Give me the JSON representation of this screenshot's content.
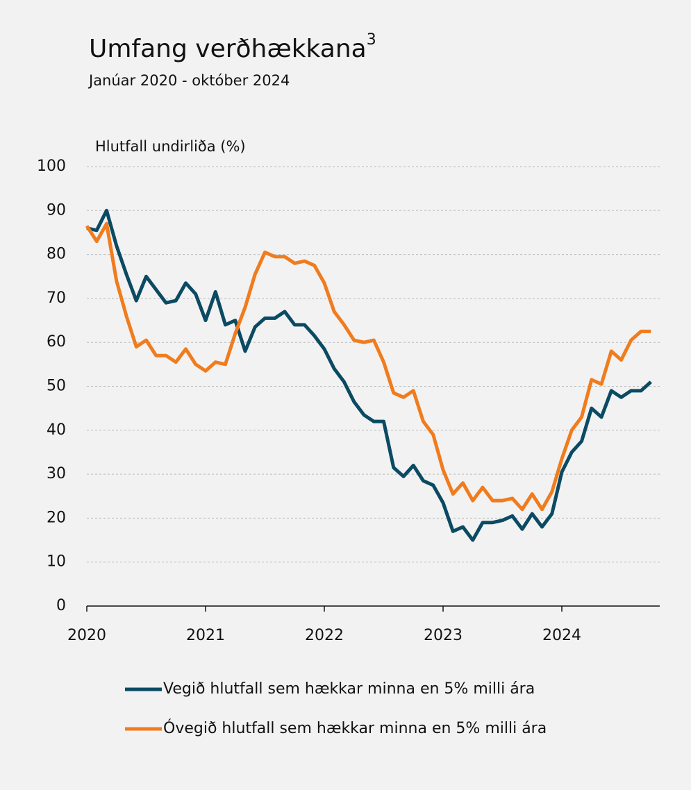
{
  "chart_data": {
    "type": "line",
    "title": "Umfang verðhækkana",
    "title_superscript": "3",
    "subtitle": "Janúar 2020 - október 2024",
    "y_label": "Hlutfall undirliða (%)",
    "categories": [
      "2020",
      null,
      null,
      null,
      null,
      null,
      null,
      null,
      null,
      null,
      null,
      null,
      "2021",
      null,
      null,
      null,
      null,
      null,
      null,
      null,
      null,
      null,
      null,
      null,
      "2022",
      null,
      null,
      null,
      null,
      null,
      null,
      null,
      null,
      null,
      null,
      null,
      "2023",
      null,
      null,
      null,
      null,
      null,
      null,
      null,
      null,
      null,
      null,
      null,
      "2024",
      null,
      null,
      null,
      null,
      null,
      null,
      null,
      null,
      null
    ],
    "series": [
      {
        "name": "Vegið hlutfall sem hækkar minna en 5% milli ára",
        "color": "#0b4a63",
        "values": [
          86,
          85.5,
          90,
          82,
          75.5,
          69.5,
          75,
          72,
          69,
          69.5,
          73.5,
          71,
          65,
          71.5,
          64,
          65,
          58,
          63.5,
          65.5,
          65.5,
          67,
          64,
          64,
          61.5,
          58.5,
          54,
          51,
          46.5,
          43.5,
          42,
          42,
          31.5,
          29.5,
          32,
          28.5,
          27.5,
          23.5,
          17,
          18,
          15,
          19,
          19,
          19.5,
          20.5,
          17.5,
          21,
          18,
          21,
          30.5,
          35,
          37.5,
          45,
          43,
          49,
          47.5,
          49,
          49,
          51
        ]
      },
      {
        "name": "Óvegið hlutfall sem hækkar minna en 5% milli ára",
        "color": "#f07c1e",
        "values": [
          86.5,
          83,
          87,
          74,
          66,
          59,
          60.5,
          57,
          57,
          55.5,
          58.5,
          55,
          53.5,
          55.5,
          55,
          62,
          68,
          75.5,
          80.5,
          79.5,
          79.5,
          78,
          78.5,
          77.5,
          73.5,
          67,
          64,
          60.5,
          60,
          60.5,
          55.5,
          48.5,
          47.5,
          49,
          42,
          39,
          31,
          25.5,
          28,
          24,
          27,
          24,
          24,
          24.5,
          22,
          25.5,
          22,
          26,
          33.5,
          40,
          43,
          51.5,
          50.5,
          58,
          56,
          60.5,
          62.5,
          62.5
        ]
      }
    ],
    "ylim": [
      0,
      100
    ],
    "yticks": [
      0,
      10,
      20,
      30,
      40,
      50,
      60,
      70,
      80,
      90,
      100
    ],
    "grid": true,
    "legend": "bottom"
  }
}
